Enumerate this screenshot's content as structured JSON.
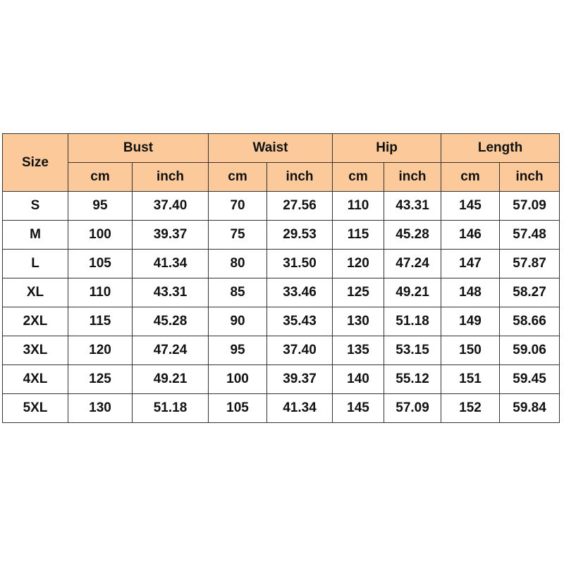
{
  "table": {
    "size_label": "Size",
    "groups": [
      {
        "name": "Bust",
        "units": [
          "cm",
          "inch"
        ]
      },
      {
        "name": "Waist",
        "units": [
          "cm",
          "inch"
        ]
      },
      {
        "name": "Hip",
        "units": [
          "cm",
          "inch"
        ]
      },
      {
        "name": "Length",
        "units": [
          "cm",
          "inch"
        ]
      }
    ],
    "rows": [
      [
        "S",
        "95",
        "37.40",
        "70",
        "27.56",
        "110",
        "43.31",
        "145",
        "57.09"
      ],
      [
        "M",
        "100",
        "39.37",
        "75",
        "29.53",
        "115",
        "45.28",
        "146",
        "57.48"
      ],
      [
        "L",
        "105",
        "41.34",
        "80",
        "31.50",
        "120",
        "47.24",
        "147",
        "57.87"
      ],
      [
        "XL",
        "110",
        "43.31",
        "85",
        "33.46",
        "125",
        "49.21",
        "148",
        "58.27"
      ],
      [
        "2XL",
        "115",
        "45.28",
        "90",
        "35.43",
        "130",
        "51.18",
        "149",
        "58.66"
      ],
      [
        "3XL",
        "120",
        "47.24",
        "95",
        "37.40",
        "135",
        "53.15",
        "150",
        "59.06"
      ],
      [
        "4XL",
        "125",
        "49.21",
        "100",
        "39.37",
        "140",
        "55.12",
        "151",
        "59.45"
      ],
      [
        "5XL",
        "130",
        "51.18",
        "105",
        "41.34",
        "145",
        "57.09",
        "152",
        "59.84"
      ]
    ]
  }
}
